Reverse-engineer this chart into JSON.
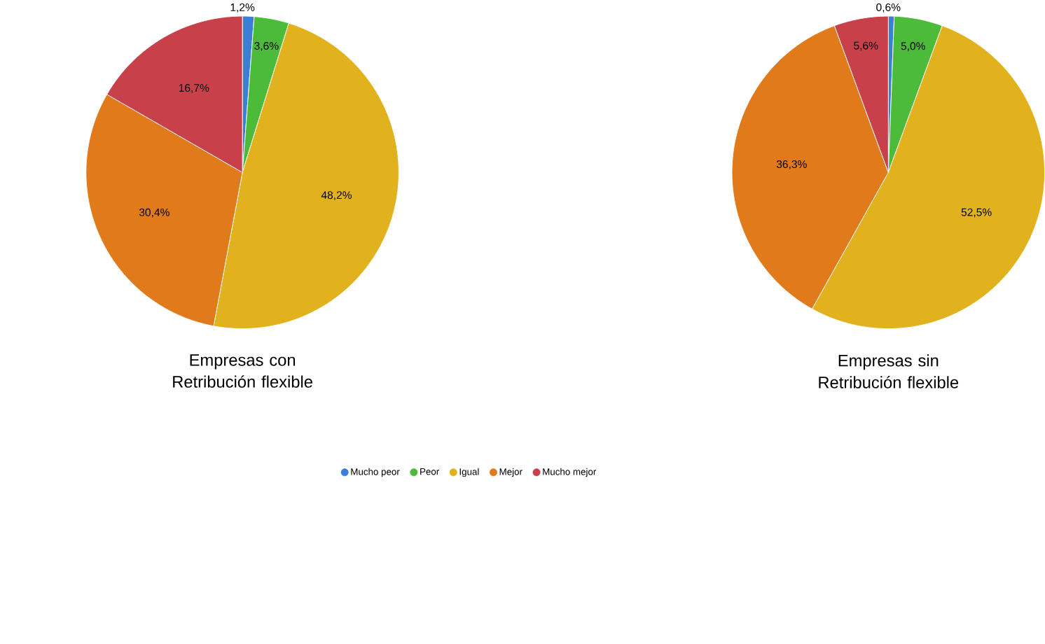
{
  "chart_data": [
    {
      "type": "pie",
      "title": "Empresas con Retribución flexible",
      "categories": [
        "Mucho peor",
        "Peor",
        "Igual",
        "Mejor",
        "Mucho mejor"
      ],
      "values": [
        1.2,
        3.6,
        48.2,
        30.4,
        16.7
      ],
      "value_labels": [
        "1,2%",
        "3,6%",
        "48,2%",
        "30,4%",
        "16,7%"
      ],
      "colors": [
        "#3a7fd5",
        "#4cbb3a",
        "#e2b21e",
        "#e07a1a",
        "#c8404a"
      ],
      "legend": "bottom"
    },
    {
      "type": "pie",
      "title": "Empresas sin Retribución flexible",
      "categories": [
        null,
        null,
        null,
        null,
        null
      ],
      "values": [
        0.6,
        5.0,
        52.5,
        36.3,
        5.6
      ],
      "value_labels": [
        "0,6%",
        "5,0%",
        "52,5%",
        "36,3%",
        "5,6%"
      ],
      "colors": [
        "#3a7fd5",
        "#4cbb3a",
        "#e2b21e",
        "#e07a1a",
        "#c8404a"
      ]
    }
  ]
}
